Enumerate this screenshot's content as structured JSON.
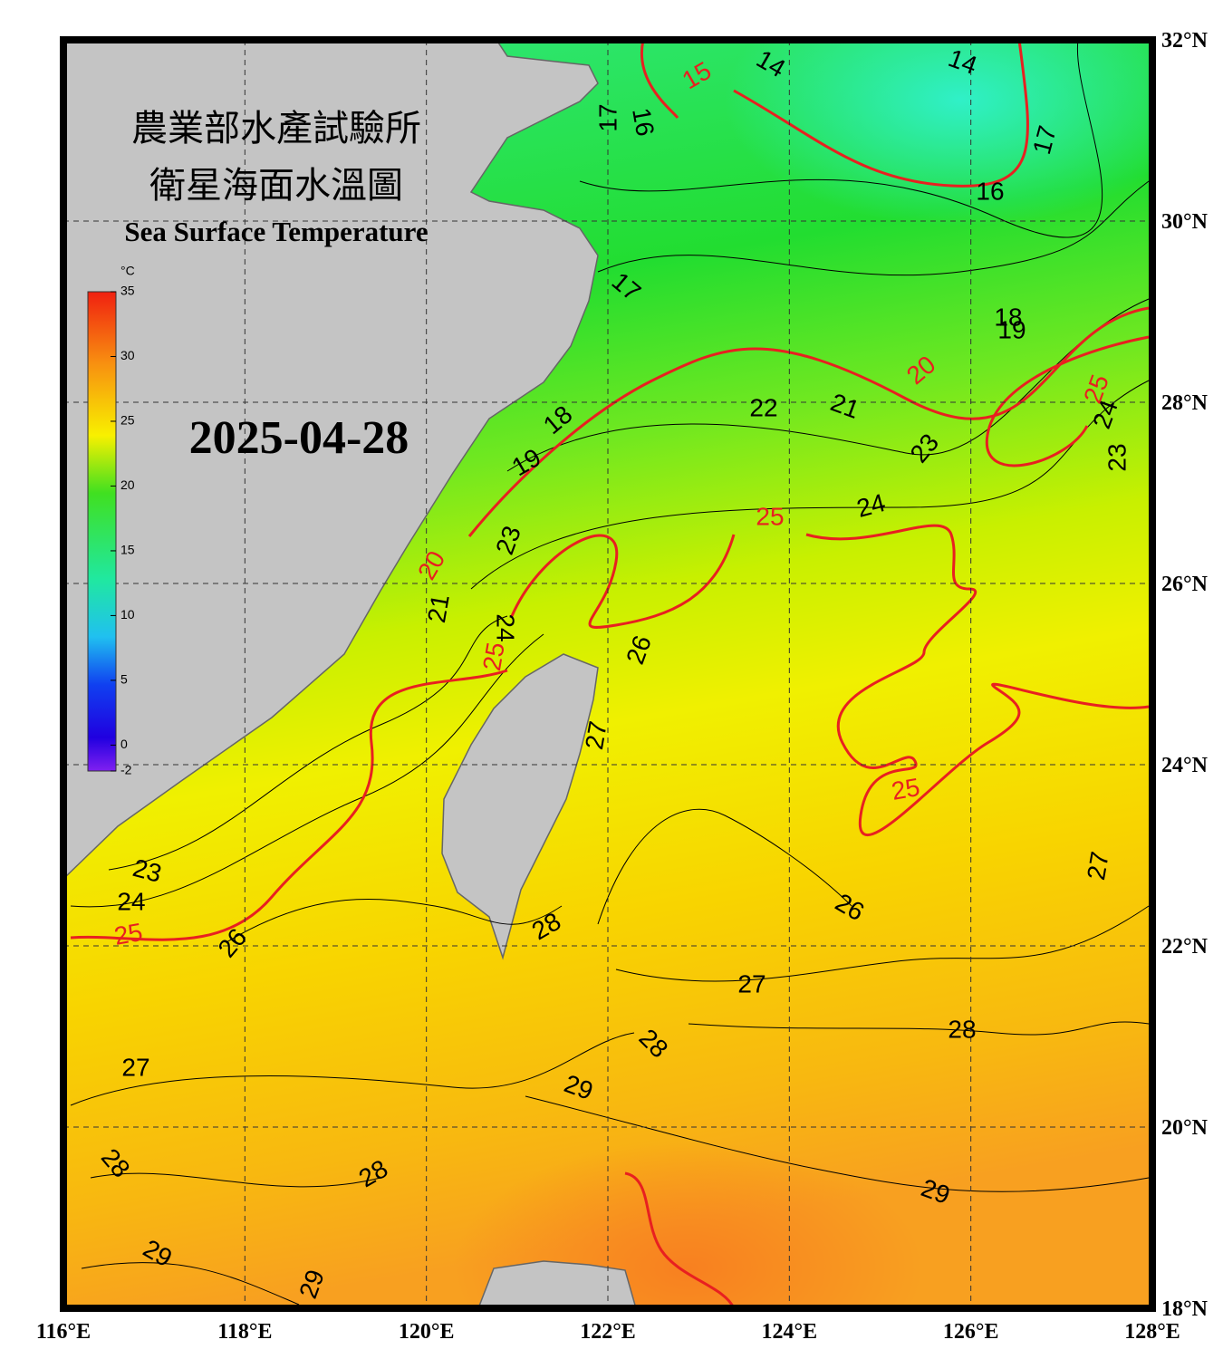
{
  "header": {
    "title_line1": "農業部水產試驗所",
    "title_line2": "衛星海面水溫圖",
    "subtitle": "Sea Surface Temperature",
    "date": "2025-04-28"
  },
  "colorbar": {
    "unit": "°C",
    "range": [
      -2,
      35
    ],
    "ticks": [
      35,
      30,
      25,
      20,
      15,
      10,
      5,
      0,
      -2
    ]
  },
  "map": {
    "lon_range": [
      116,
      128
    ],
    "lat_range": [
      18,
      32
    ],
    "lon_ticks": [
      {
        "value": 116,
        "label": "116°E"
      },
      {
        "value": 118,
        "label": "118°E"
      },
      {
        "value": 120,
        "label": "120°E"
      },
      {
        "value": 122,
        "label": "122°E"
      },
      {
        "value": 124,
        "label": "124°E"
      },
      {
        "value": 126,
        "label": "126°E"
      },
      {
        "value": 128,
        "label": "128°E"
      }
    ],
    "lat_ticks": [
      {
        "value": 32,
        "label": "32°N"
      },
      {
        "value": 30,
        "label": "30°N"
      },
      {
        "value": 28,
        "label": "28°N"
      },
      {
        "value": 26,
        "label": "26°N"
      },
      {
        "value": 24,
        "label": "24°N"
      },
      {
        "value": 22,
        "label": "22°N"
      },
      {
        "value": 20,
        "label": "20°N"
      },
      {
        "value": 18,
        "label": "18°N"
      }
    ],
    "contour_labels": [
      "14",
      "14",
      "15",
      "17",
      "16",
      "17",
      "16",
      "17",
      "18",
      "19",
      "20",
      "22",
      "21",
      "25",
      "24",
      "23",
      "18",
      "19",
      "23",
      "24",
      "25",
      "23",
      "20",
      "21",
      "24",
      "25",
      "26",
      "27",
      "25",
      "23",
      "24",
      "25",
      "26",
      "28",
      "26",
      "27",
      "27",
      "28",
      "28",
      "27",
      "29",
      "28",
      "28",
      "29",
      "29",
      "29"
    ]
  }
}
